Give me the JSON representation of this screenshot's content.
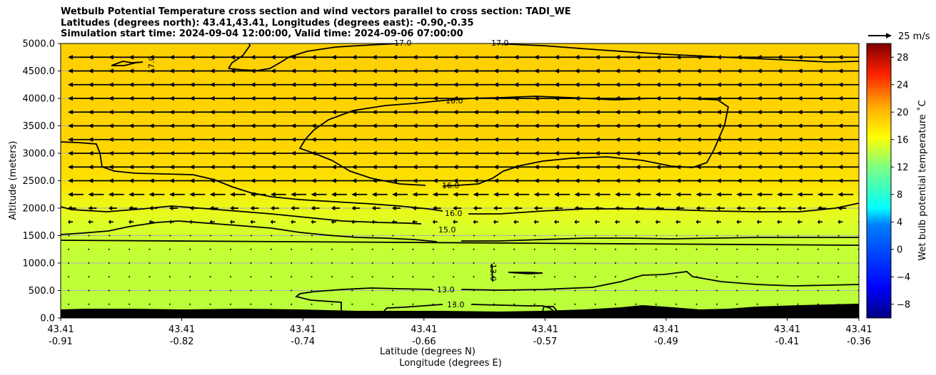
{
  "title": {
    "line1": "Wetbulb Potential Temperature cross section and wind vectors parallel to cross section: TADI_WE",
    "line2": "Latitudes (degrees north): 43.41,43.41, Longitudes (degrees east): -0.90,-0.35",
    "line3": "Simulation start time: 2024-09-04 12:00:00, Valid time: 2024-09-06 07:00:00"
  },
  "colors": {
    "orange": "#ffcf00",
    "yellow": "#f2f215",
    "lime": "#bdff3a",
    "terrain": "#000000"
  },
  "chart_data": {
    "type": "heatmap",
    "title": "Wetbulb Potential Temperature cross section and wind vectors parallel to cross section: TADI_WE",
    "ylabel": "Altitude (meters)",
    "xlabel_lat": "Latitude (degrees N)",
    "xlabel_lon": "Longitude (degrees E)",
    "ylim": [
      0,
      5000
    ],
    "y_ticks": [
      "0.0",
      "500.0",
      "1000.0",
      "1500.0",
      "2000.0",
      "2500.0",
      "3000.0",
      "3500.0",
      "4000.0",
      "4500.0",
      "5000.0"
    ],
    "x_ticks": [
      {
        "lat": "43.41",
        "lon": "-0.91"
      },
      {
        "lat": "43.41",
        "lon": "-0.82"
      },
      {
        "lat": "43.41",
        "lon": "-0.74"
      },
      {
        "lat": "43.41",
        "lon": "-0.66"
      },
      {
        "lat": "43.41",
        "lon": "-0.57"
      },
      {
        "lat": "43.41",
        "lon": "-0.49"
      },
      {
        "lat": "43.41",
        "lon": "-0.41"
      },
      {
        "lat": "43.41",
        "lon": "-0.36"
      }
    ],
    "colorbar": {
      "label": "Wet bulb potential temperature ˚C",
      "ticks": [
        "−8",
        "−4",
        "0",
        "4",
        "8",
        "12",
        "16",
        "20",
        "24",
        "28"
      ],
      "range": [
        -10,
        30
      ]
    },
    "quiver_key": "25 m/s",
    "contour_labels": [
      "17.0",
      "17.0",
      "17.0",
      "16.0",
      "16.0",
      "16.0",
      "15.0",
      "13.0",
      "13.0",
      "13.0"
    ],
    "wind_arrow_rows_m": [
      4750,
      4500,
      4250,
      4000,
      3750,
      3500,
      3250,
      3000,
      2750,
      2500,
      2250,
      2000,
      1750,
      1500,
      1250,
      1000,
      750,
      500,
      250
    ],
    "wind_arrow_lengths_px": [
      30,
      30,
      30,
      30,
      30,
      30,
      30,
      30,
      30,
      30,
      22,
      12,
      7,
      3,
      2,
      2,
      2,
      2,
      2
    ]
  }
}
